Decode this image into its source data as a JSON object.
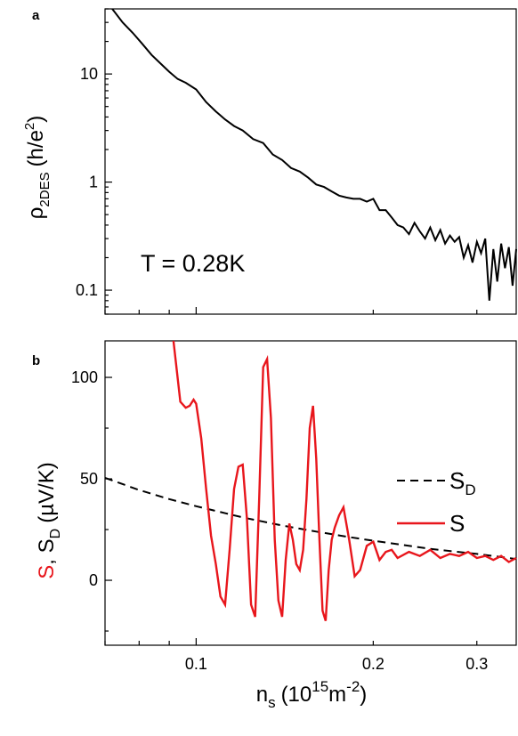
{
  "chart_data": [
    {
      "type": "line",
      "panel_label": "a",
      "ylabel_main": "ρ",
      "ylabel_sub": "2DES",
      "ylabel_unit_pre": "(h/e",
      "ylabel_unit_sup": "2",
      "ylabel_unit_post": ")",
      "yscale": "log",
      "xscale": "log",
      "xlim": [
        0.07,
        0.35
      ],
      "ylim": [
        0.06,
        40
      ],
      "yticks": [
        {
          "value": 0.1,
          "label": "0.1"
        },
        {
          "value": 1,
          "label": "1"
        },
        {
          "value": 10,
          "label": "10"
        }
      ],
      "annotation": "T = 0.28K",
      "series": [
        {
          "color": "#000000",
          "x": [
            0.072,
            0.075,
            0.078,
            0.081,
            0.084,
            0.087,
            0.09,
            0.093,
            0.096,
            0.1,
            0.104,
            0.108,
            0.112,
            0.116,
            0.12,
            0.125,
            0.13,
            0.135,
            0.14,
            0.145,
            0.15,
            0.155,
            0.16,
            0.165,
            0.17,
            0.175,
            0.18,
            0.185,
            0.19,
            0.195,
            0.2,
            0.205,
            0.21,
            0.215,
            0.22,
            0.225,
            0.23,
            0.235,
            0.24,
            0.245,
            0.25,
            0.255,
            0.26,
            0.265,
            0.27,
            0.275,
            0.28,
            0.285,
            0.29,
            0.295,
            0.3,
            0.305,
            0.31,
            0.315,
            0.32,
            0.325,
            0.33,
            0.335,
            0.34,
            0.345,
            0.35
          ],
          "y": [
            40,
            30,
            24,
            19,
            15,
            12.5,
            10.5,
            9.0,
            8.3,
            7.2,
            5.5,
            4.5,
            3.8,
            3.3,
            3.0,
            2.5,
            2.3,
            1.8,
            1.6,
            1.35,
            1.25,
            1.1,
            0.95,
            0.9,
            0.82,
            0.75,
            0.72,
            0.7,
            0.7,
            0.66,
            0.7,
            0.55,
            0.55,
            0.47,
            0.4,
            0.38,
            0.33,
            0.42,
            0.35,
            0.3,
            0.38,
            0.29,
            0.36,
            0.27,
            0.32,
            0.28,
            0.31,
            0.2,
            0.26,
            0.18,
            0.28,
            0.22,
            0.3,
            0.08,
            0.24,
            0.12,
            0.27,
            0.16,
            0.25,
            0.11,
            0.24
          ]
        }
      ]
    },
    {
      "type": "line",
      "panel_label": "b",
      "xscale": "log",
      "xlim": [
        0.07,
        0.35
      ],
      "ylim": [
        -32,
        118
      ],
      "xticks": [
        {
          "value": 0.1,
          "label": "0.1"
        },
        {
          "value": 0.2,
          "label": "0.2"
        },
        {
          "value": 0.3,
          "label": "0.3"
        }
      ],
      "yticks": [
        {
          "value": 0,
          "label": "0"
        },
        {
          "value": 50,
          "label": "50"
        },
        {
          "value": 100,
          "label": "100"
        }
      ],
      "xlabel_main": "n",
      "xlabel_sub": "s",
      "xlabel_unit_pre": "(10",
      "xlabel_unit_sup": "15",
      "xlabel_unit_mid": "m",
      "xlabel_unit_sup2": "-2",
      "xlabel_unit_post": ")",
      "ylabel_red": "S",
      "ylabel_sep": ", S",
      "ylabel_sub": "D",
      "ylabel_unit": "(µV/K)",
      "legend": {
        "placement": "right",
        "entries": [
          {
            "main": "S",
            "sub": "D",
            "style": "dashed",
            "color": "#000000"
          },
          {
            "main": "S",
            "sub": "",
            "style": "solid",
            "color": "#e8161c"
          }
        ]
      },
      "series": [
        {
          "name": "SD",
          "style": "dashed",
          "color": "#000000",
          "x": [
            0.07,
            0.08,
            0.09,
            0.1,
            0.12,
            0.14,
            0.16,
            0.18,
            0.2,
            0.25,
            0.3,
            0.35
          ],
          "y": [
            50.5,
            44.5,
            40.0,
            36.5,
            31.0,
            27.0,
            24.0,
            21.5,
            19.5,
            15.5,
            13.0,
            10.5
          ]
        },
        {
          "name": "S",
          "style": "solid",
          "color": "#e8161c",
          "x": [
            0.0915,
            0.094,
            0.096,
            0.0975,
            0.099,
            0.1,
            0.102,
            0.104,
            0.106,
            0.108,
            0.11,
            0.112,
            0.114,
            0.116,
            0.118,
            0.12,
            0.122,
            0.124,
            0.126,
            0.128,
            0.13,
            0.132,
            0.134,
            0.136,
            0.138,
            0.14,
            0.142,
            0.144,
            0.146,
            0.148,
            0.15,
            0.152,
            0.154,
            0.156,
            0.158,
            0.16,
            0.162,
            0.164,
            0.166,
            0.168,
            0.17,
            0.172,
            0.175,
            0.178,
            0.182,
            0.186,
            0.19,
            0.195,
            0.2,
            0.205,
            0.21,
            0.215,
            0.22,
            0.23,
            0.24,
            0.25,
            0.26,
            0.27,
            0.28,
            0.29,
            0.3,
            0.31,
            0.32,
            0.33,
            0.34,
            0.35
          ],
          "y": [
            118,
            88,
            85,
            86,
            89,
            87,
            70,
            45,
            22,
            8,
            -8,
            -12,
            15,
            45,
            56,
            57,
            30,
            -12,
            -18,
            40,
            105,
            109,
            80,
            20,
            -10,
            -18,
            10,
            28,
            20,
            8,
            5,
            15,
            40,
            75,
            86,
            60,
            20,
            -15,
            -20,
            5,
            20,
            26,
            32,
            36,
            20,
            2,
            5,
            17,
            19,
            10,
            14,
            15,
            11,
            14,
            12,
            15,
            11,
            13,
            12,
            14,
            11,
            12,
            10,
            12,
            9,
            11
          ]
        }
      ]
    }
  ]
}
